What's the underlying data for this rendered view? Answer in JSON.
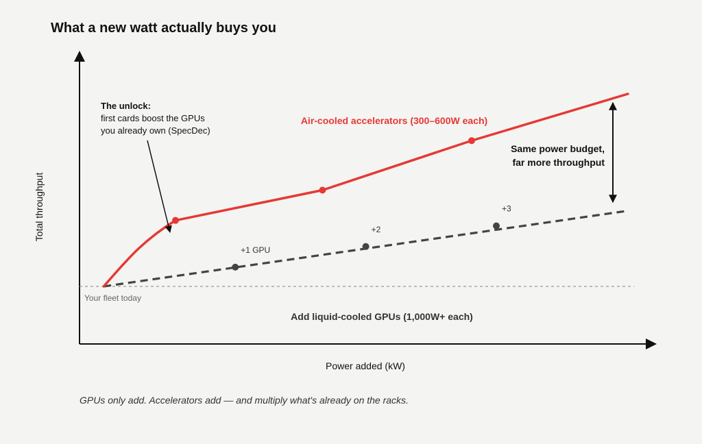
{
  "page": {
    "title": "What a new watt actually buys you",
    "caption": "GPUs only add. Accelerators add — and multiply what's already on the racks."
  },
  "chart_data": {
    "type": "line",
    "xlabel": "Power added (kW)",
    "ylabel": "Total throughput",
    "xlim": [
      0,
      100
    ],
    "ylim": [
      0,
      100
    ],
    "baseline": {
      "y": 20,
      "label": "Your fleet today"
    },
    "series": [
      {
        "name": "Air-cooled accelerators (300–600W each)",
        "color": "#e53935",
        "style": "solid",
        "points": [
          [
            4.4,
            20
          ],
          [
            8,
            28
          ],
          [
            11,
            36
          ],
          [
            17.5,
            44
          ],
          [
            44.3,
            55
          ],
          [
            71.5,
            73
          ],
          [
            100,
            90
          ]
        ],
        "markers": [
          [
            17.5,
            44
          ],
          [
            44.3,
            55
          ],
          [
            71.5,
            73
          ]
        ]
      },
      {
        "name": "Add liquid-cooled GPUs (1,000W+ each)",
        "color": "#444444",
        "style": "dashed",
        "points": [
          [
            4.4,
            20
          ],
          [
            100,
            47.5
          ]
        ],
        "markers": [
          {
            "x": 28.4,
            "y": 27,
            "label": "+1 GPU"
          },
          {
            "x": 52.2,
            "y": 34.5,
            "label": "+2"
          },
          {
            "x": 76,
            "y": 42,
            "label": "+3"
          }
        ]
      }
    ],
    "annotations": {
      "unlock_title": "The unlock:",
      "unlock_lines": [
        "first cards boost the GPUs",
        "you already own (SpecDec)"
      ],
      "gap_lines": [
        "Same power budget,",
        "far more throughput"
      ]
    }
  }
}
